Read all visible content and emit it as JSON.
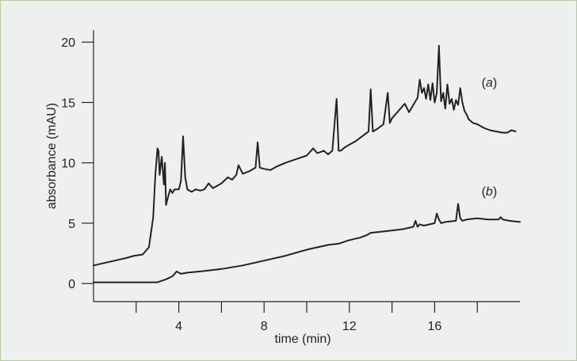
{
  "chart_data": {
    "type": "line",
    "title": "",
    "xlabel": "time (min)",
    "ylabel": "absorbance (mAU)",
    "xlim": [
      0,
      20
    ],
    "ylim": [
      -1.5,
      21
    ],
    "x_ticks": [
      2,
      4,
      6,
      8,
      10,
      12,
      14,
      16,
      18
    ],
    "x_tick_labels": [
      {
        "value": 4,
        "label": "4"
      },
      {
        "value": 8,
        "label": "8"
      },
      {
        "value": 12,
        "label": "12"
      },
      {
        "value": 16,
        "label": "16"
      }
    ],
    "y_ticks": [
      {
        "value": 0,
        "label": "0"
      },
      {
        "value": 5,
        "label": "5"
      },
      {
        "value": 10,
        "label": "10"
      },
      {
        "value": 15,
        "label": "15"
      },
      {
        "value": 20,
        "label": "20"
      }
    ],
    "grid": false,
    "series": [
      {
        "name": "(a)",
        "label_at": {
          "x": 18.2,
          "y": 16.3
        },
        "x": [
          0.0,
          0.5,
          1.0,
          1.5,
          1.9,
          2.3,
          2.6,
          2.8,
          2.9,
          3.0,
          3.05,
          3.1,
          3.2,
          3.3,
          3.35,
          3.4,
          3.5,
          3.6,
          3.7,
          3.8,
          4.0,
          4.1,
          4.2,
          4.3,
          4.4,
          4.6,
          4.8,
          5.0,
          5.2,
          5.4,
          5.6,
          5.8,
          6.0,
          6.3,
          6.5,
          6.7,
          6.8,
          7.0,
          7.3,
          7.6,
          7.7,
          7.8,
          8.0,
          8.3,
          8.6,
          9.0,
          9.5,
          10.0,
          10.3,
          10.5,
          10.8,
          11.0,
          11.2,
          11.4,
          11.5,
          11.6,
          11.8,
          12.0,
          12.3,
          12.6,
          12.9,
          13.0,
          13.1,
          13.3,
          13.6,
          13.8,
          13.9,
          14.0,
          14.3,
          14.6,
          14.8,
          15.0,
          15.2,
          15.3,
          15.4,
          15.5,
          15.6,
          15.7,
          15.8,
          15.9,
          16.0,
          16.1,
          16.2,
          16.3,
          16.4,
          16.5,
          16.6,
          16.7,
          16.8,
          16.9,
          17.0,
          17.1,
          17.2,
          17.3,
          17.4,
          17.5,
          17.6,
          17.8,
          18.0,
          18.3,
          18.6,
          18.9,
          19.2,
          19.4,
          19.6,
          19.8
        ],
        "y": [
          1.5,
          1.7,
          1.9,
          2.1,
          2.3,
          2.4,
          3.0,
          5.5,
          9.0,
          11.2,
          11.0,
          9.0,
          10.5,
          8.2,
          10.0,
          6.5,
          7.2,
          7.8,
          7.5,
          7.8,
          7.8,
          8.5,
          12.2,
          8.8,
          7.8,
          7.6,
          7.8,
          7.7,
          7.8,
          8.3,
          7.9,
          8.1,
          8.3,
          8.8,
          8.6,
          9.0,
          9.8,
          9.1,
          9.3,
          9.6,
          11.7,
          9.6,
          9.5,
          9.4,
          9.7,
          10.0,
          10.3,
          10.6,
          11.2,
          10.8,
          11.0,
          10.7,
          11.0,
          15.3,
          11.0,
          11.0,
          11.3,
          11.5,
          11.8,
          12.2,
          12.6,
          16.1,
          12.6,
          12.8,
          13.2,
          15.8,
          13.3,
          13.7,
          14.3,
          14.9,
          14.2,
          14.8,
          15.4,
          16.9,
          15.8,
          16.2,
          15.3,
          16.5,
          15.2,
          16.6,
          15.0,
          15.8,
          19.7,
          15.1,
          15.8,
          14.5,
          16.5,
          14.9,
          15.3,
          14.4,
          15.2,
          14.8,
          16.2,
          15.0,
          14.3,
          14.0,
          13.6,
          13.3,
          13.2,
          12.9,
          12.7,
          12.6,
          12.5,
          12.5,
          12.7,
          12.6
        ]
      },
      {
        "name": "(b)",
        "label_at": {
          "x": 18.2,
          "y": 7.3
        },
        "x": [
          0.0,
          1.0,
          2.0,
          3.0,
          3.4,
          3.7,
          3.9,
          4.1,
          4.4,
          5.0,
          6.0,
          7.0,
          8.0,
          9.0,
          10.0,
          11.0,
          11.5,
          12.0,
          12.5,
          12.8,
          13.0,
          13.5,
          14.0,
          14.5,
          15.0,
          15.1,
          15.2,
          15.3,
          15.5,
          16.0,
          16.1,
          16.2,
          16.3,
          16.5,
          17.0,
          17.1,
          17.2,
          17.3,
          17.5,
          18.0,
          18.5,
          19.0,
          19.1,
          19.2,
          19.5,
          20.0
        ],
        "y": [
          0.1,
          0.1,
          0.1,
          0.1,
          0.35,
          0.6,
          1.0,
          0.8,
          0.9,
          1.0,
          1.2,
          1.5,
          1.9,
          2.3,
          2.8,
          3.2,
          3.3,
          3.6,
          3.8,
          4.0,
          4.2,
          4.3,
          4.4,
          4.5,
          4.7,
          5.2,
          4.7,
          4.9,
          4.8,
          5.0,
          5.8,
          5.3,
          5.0,
          5.1,
          5.2,
          6.6,
          5.4,
          5.2,
          5.3,
          5.4,
          5.3,
          5.3,
          5.5,
          5.3,
          5.2,
          5.1
        ]
      }
    ]
  }
}
